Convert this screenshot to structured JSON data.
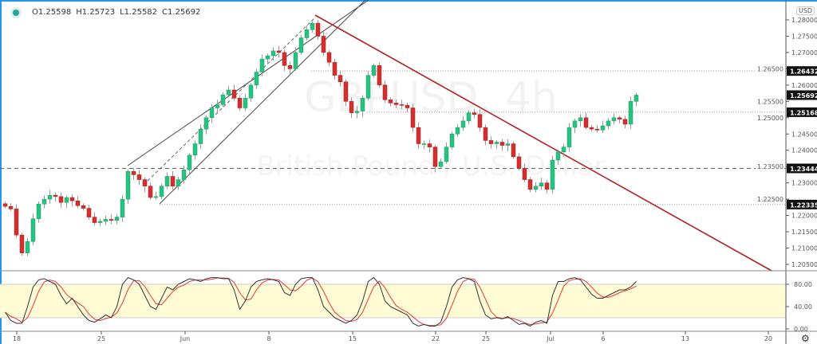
{
  "symbol_watermark": {
    "line1": "GBPUSD, 4h",
    "line2": "British Pound / U.S. Dollar"
  },
  "legend": {
    "open": "O1.25598",
    "high": "H1.25723",
    "low": "L1.25582",
    "close": "C1.25692"
  },
  "currency": "USD",
  "colors": {
    "up": "#26c281",
    "down": "#d32f2f",
    "trendline": "#b22222",
    "stoch_k": "#333333",
    "stoch_d": "#e53935",
    "stoch_band": "#fffbd5",
    "accent": "#2196f3"
  },
  "chart_data": {
    "type": "candlestick",
    "price_axis": {
      "ticks": [
        "1.28000",
        "1.27500",
        "1.27000",
        "1.26500",
        "1.26000",
        "1.25500",
        "1.25000",
        "1.24500",
        "1.24000",
        "1.23500",
        "1.23000",
        "1.22500",
        "1.22000",
        "1.21500",
        "1.21000",
        "1.20500"
      ],
      "range": [
        1.2035,
        1.2855
      ]
    },
    "price_labels": [
      {
        "value": "1.26432",
        "style": "dotted"
      },
      {
        "value": "1.25692",
        "style": "last"
      },
      {
        "value": "1.25168",
        "style": "dotted"
      },
      {
        "value": "1.23444",
        "style": "dashed"
      },
      {
        "value": "1.22335",
        "style": "dotted"
      }
    ],
    "time_axis": [
      "18",
      "25",
      "Jun",
      "8",
      "15",
      "22",
      "25",
      "Jul",
      "6",
      "13",
      "20"
    ],
    "close": [
      1.2228,
      1.222,
      1.214,
      1.2085,
      1.212,
      1.219,
      1.2235,
      1.225,
      1.2262,
      1.2258,
      1.224,
      1.2255,
      1.2245,
      1.223,
      1.2222,
      1.2195,
      1.2178,
      1.2182,
      1.2188,
      1.2185,
      1.2195,
      1.225,
      1.2335,
      1.2325,
      1.231,
      1.229,
      1.2255,
      1.2258,
      1.229,
      1.232,
      1.229,
      1.231,
      1.234,
      1.2385,
      1.242,
      1.2465,
      1.25,
      1.253,
      1.254,
      1.257,
      1.2585,
      1.256,
      1.253,
      1.256,
      1.26,
      1.264,
      1.268,
      1.269,
      1.2705,
      1.27,
      1.266,
      1.265,
      1.27,
      1.2745,
      1.277,
      1.279,
      1.275,
      1.27,
      1.267,
      1.263,
      1.261,
      1.255,
      1.2515,
      1.252,
      1.256,
      1.263,
      1.266,
      1.26,
      1.2555,
      1.2545,
      1.254,
      1.2538,
      1.253,
      1.247,
      1.242,
      1.242,
      1.241,
      1.235,
      1.2365,
      1.241,
      1.245,
      1.247,
      1.249,
      1.2515,
      1.251,
      1.247,
      1.243,
      1.242,
      1.2425,
      1.2415,
      1.242,
      1.238,
      1.2345,
      1.231,
      1.228,
      1.229,
      1.23,
      1.228,
      1.237,
      1.2395,
      1.241,
      1.247,
      1.249,
      1.25,
      1.247,
      1.2465,
      1.2462,
      1.2475,
      1.249,
      1.25,
      1.2495,
      1.248,
      1.255,
      1.25692
    ],
    "stochastic": {
      "axis_ticks": [
        "80.00",
        "40.00",
        "0.00"
      ],
      "band": [
        20,
        80
      ],
      "k": [
        30,
        15,
        10,
        10,
        40,
        75,
        88,
        90,
        85,
        80,
        60,
        45,
        55,
        40,
        25,
        15,
        12,
        18,
        25,
        20,
        40,
        80,
        92,
        88,
        80,
        60,
        40,
        35,
        55,
        75,
        70,
        80,
        85,
        90,
        88,
        85,
        90,
        92,
        92,
        90,
        90,
        70,
        35,
        50,
        75,
        85,
        88,
        90,
        88,
        85,
        65,
        60,
        80,
        90,
        92,
        92,
        70,
        40,
        30,
        20,
        15,
        10,
        15,
        25,
        50,
        85,
        92,
        80,
        50,
        40,
        35,
        30,
        25,
        10,
        5,
        8,
        5,
        5,
        12,
        40,
        75,
        88,
        92,
        90,
        85,
        50,
        25,
        18,
        20,
        18,
        22,
        15,
        8,
        10,
        5,
        12,
        15,
        10,
        60,
        85,
        85,
        90,
        92,
        88,
        75,
        62,
        55,
        55,
        60,
        65,
        70,
        70,
        75,
        85
      ]
    }
  }
}
